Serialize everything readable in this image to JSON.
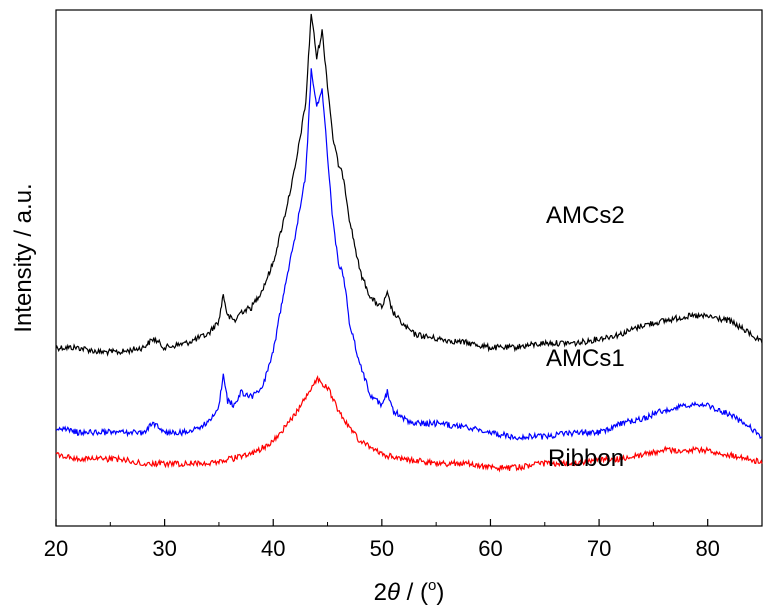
{
  "chart_data": {
    "type": "line",
    "xlabel_parts": {
      "prefix": "2",
      "theta": "θ",
      "middle": " / (",
      "sup": "o",
      "suffix": ")"
    },
    "ylabel": "Intensity / a.u.",
    "xlim": [
      20,
      85
    ],
    "x_ticks": [
      20,
      30,
      40,
      50,
      60,
      70,
      80
    ],
    "y_ticks_labeled": false,
    "grid": false,
    "legend": "none",
    "series": [
      {
        "name": "AMCs2",
        "color": "#000000",
        "points": [
          [
            20,
            0.27
          ],
          [
            22,
            0.27
          ],
          [
            24,
            0.26
          ],
          [
            26,
            0.26
          ],
          [
            28,
            0.27
          ],
          [
            29,
            0.29
          ],
          [
            30,
            0.27
          ],
          [
            32,
            0.28
          ],
          [
            34,
            0.3
          ],
          [
            35,
            0.33
          ],
          [
            35.4,
            0.39
          ],
          [
            35.8,
            0.34
          ],
          [
            36.5,
            0.33
          ],
          [
            37,
            0.35
          ],
          [
            38,
            0.36
          ],
          [
            39,
            0.4
          ],
          [
            40,
            0.46
          ],
          [
            41,
            0.56
          ],
          [
            42,
            0.67
          ],
          [
            43,
            0.82
          ],
          [
            43.5,
            1.02
          ],
          [
            44,
            0.92
          ],
          [
            44.5,
            0.98
          ],
          [
            45,
            0.86
          ],
          [
            45.5,
            0.74
          ],
          [
            46,
            0.68
          ],
          [
            46.5,
            0.65
          ],
          [
            47,
            0.56
          ],
          [
            48,
            0.44
          ],
          [
            49,
            0.38
          ],
          [
            50,
            0.36
          ],
          [
            50.5,
            0.39
          ],
          [
            51,
            0.35
          ],
          [
            52,
            0.32
          ],
          [
            53,
            0.3
          ],
          [
            55,
            0.29
          ],
          [
            58,
            0.28
          ],
          [
            60,
            0.27
          ],
          [
            62,
            0.27
          ],
          [
            65,
            0.28
          ],
          [
            68,
            0.28
          ],
          [
            70,
            0.29
          ],
          [
            72,
            0.3
          ],
          [
            74,
            0.32
          ],
          [
            76,
            0.33
          ],
          [
            78,
            0.34
          ],
          [
            80,
            0.34
          ],
          [
            82,
            0.33
          ],
          [
            84,
            0.3
          ],
          [
            85,
            0.28
          ]
        ]
      },
      {
        "name": "AMCs1",
        "color": "#0000ff",
        "points": [
          [
            20,
            0.09
          ],
          [
            22,
            0.08
          ],
          [
            24,
            0.08
          ],
          [
            26,
            0.08
          ],
          [
            28,
            0.08
          ],
          [
            29,
            0.1
          ],
          [
            30,
            0.08
          ],
          [
            32,
            0.08
          ],
          [
            34,
            0.1
          ],
          [
            35,
            0.14
          ],
          [
            35.4,
            0.21
          ],
          [
            35.8,
            0.15
          ],
          [
            36.5,
            0.14
          ],
          [
            37,
            0.17
          ],
          [
            38,
            0.16
          ],
          [
            39,
            0.18
          ],
          [
            40,
            0.26
          ],
          [
            41,
            0.4
          ],
          [
            42,
            0.52
          ],
          [
            43,
            0.66
          ],
          [
            43.5,
            0.89
          ],
          [
            44,
            0.81
          ],
          [
            44.5,
            0.85
          ],
          [
            45,
            0.7
          ],
          [
            45.5,
            0.55
          ],
          [
            46,
            0.46
          ],
          [
            46.5,
            0.43
          ],
          [
            47,
            0.33
          ],
          [
            48,
            0.23
          ],
          [
            49,
            0.16
          ],
          [
            50,
            0.14
          ],
          [
            50.5,
            0.17
          ],
          [
            51,
            0.13
          ],
          [
            52,
            0.11
          ],
          [
            53,
            0.1
          ],
          [
            55,
            0.1
          ],
          [
            58,
            0.09
          ],
          [
            60,
            0.08
          ],
          [
            62,
            0.07
          ],
          [
            65,
            0.07
          ],
          [
            68,
            0.08
          ],
          [
            70,
            0.08
          ],
          [
            72,
            0.1
          ],
          [
            74,
            0.11
          ],
          [
            76,
            0.13
          ],
          [
            78,
            0.14
          ],
          [
            80,
            0.14
          ],
          [
            82,
            0.12
          ],
          [
            84,
            0.09
          ],
          [
            85,
            0.07
          ]
        ]
      },
      {
        "name": "Ribbon",
        "color": "#ff0000",
        "points": [
          [
            20,
            0.03
          ],
          [
            22,
            0.02
          ],
          [
            24,
            0.02
          ],
          [
            26,
            0.02
          ],
          [
            28,
            0.01
          ],
          [
            30,
            0.01
          ],
          [
            32,
            0.01
          ],
          [
            34,
            0.01
          ],
          [
            36,
            0.02
          ],
          [
            38,
            0.03
          ],
          [
            40,
            0.06
          ],
          [
            42,
            0.12
          ],
          [
            43,
            0.16
          ],
          [
            44,
            0.2
          ],
          [
            45,
            0.18
          ],
          [
            46,
            0.13
          ],
          [
            47,
            0.09
          ],
          [
            48,
            0.06
          ],
          [
            50,
            0.03
          ],
          [
            52,
            0.02
          ],
          [
            55,
            0.01
          ],
          [
            58,
            0.01
          ],
          [
            60,
            0.0
          ],
          [
            62,
            0.0
          ],
          [
            65,
            0.01
          ],
          [
            68,
            0.01
          ],
          [
            70,
            0.02
          ],
          [
            72,
            0.02
          ],
          [
            74,
            0.03
          ],
          [
            76,
            0.04
          ],
          [
            78,
            0.04
          ],
          [
            80,
            0.04
          ],
          [
            82,
            0.03
          ],
          [
            84,
            0.02
          ],
          [
            85,
            0.01
          ]
        ]
      }
    ]
  }
}
